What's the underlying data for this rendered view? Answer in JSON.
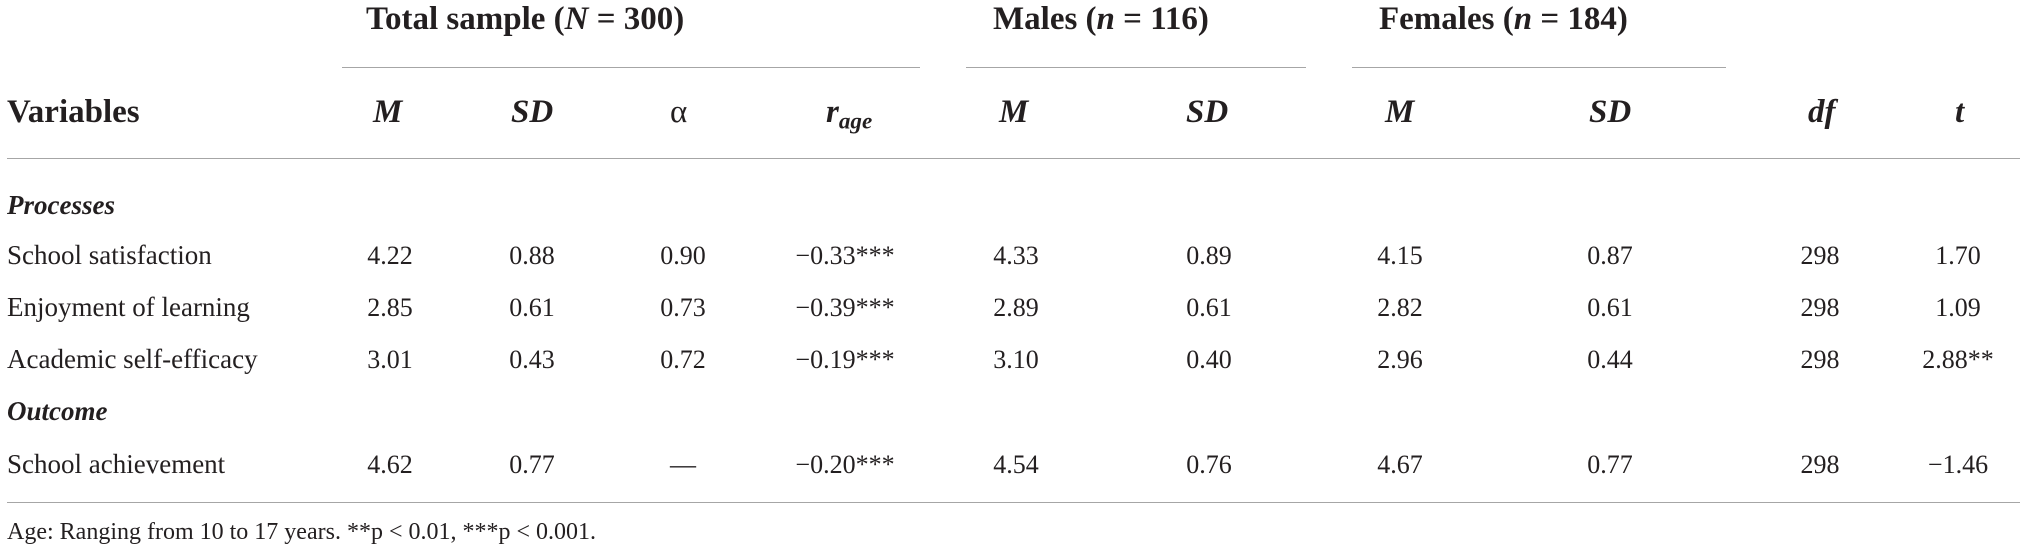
{
  "groups": {
    "total": "Total sample (N = 300)",
    "males": "Males (n = 116)",
    "females": "Females (n = 184)"
  },
  "headers": {
    "variables": "Variables",
    "m": "M",
    "sd": "SD",
    "alpha": "α",
    "r": "r",
    "r_sub": "age",
    "df": "df",
    "t": "t"
  },
  "sections": {
    "processes": "Processes",
    "outcome": "Outcome"
  },
  "rows": [
    {
      "label": "School satisfaction",
      "cells": [
        "4.22",
        "0.88",
        "0.90",
        "−0.33***",
        "4.33",
        "0.89",
        "4.15",
        "0.87",
        "298",
        "1.70"
      ]
    },
    {
      "label": "Enjoyment of learning",
      "cells": [
        "2.85",
        "0.61",
        "0.73",
        "−0.39***",
        "2.89",
        "0.61",
        "2.82",
        "0.61",
        "298",
        "1.09"
      ]
    },
    {
      "label": "Academic self-efficacy",
      "cells": [
        "3.01",
        "0.43",
        "0.72",
        "−0.19***",
        "3.10",
        "0.40",
        "2.96",
        "0.44",
        "298",
        "2.88**"
      ]
    },
    {
      "label": "School achievement",
      "cells": [
        "4.62",
        "0.77",
        "—",
        "−0.20***",
        "4.54",
        "0.76",
        "4.67",
        "0.77",
        "298",
        "−1.46"
      ]
    }
  ],
  "note": "Age: Ranging from 10 to 17 years. **p < 0.01, ***p < 0.001."
}
